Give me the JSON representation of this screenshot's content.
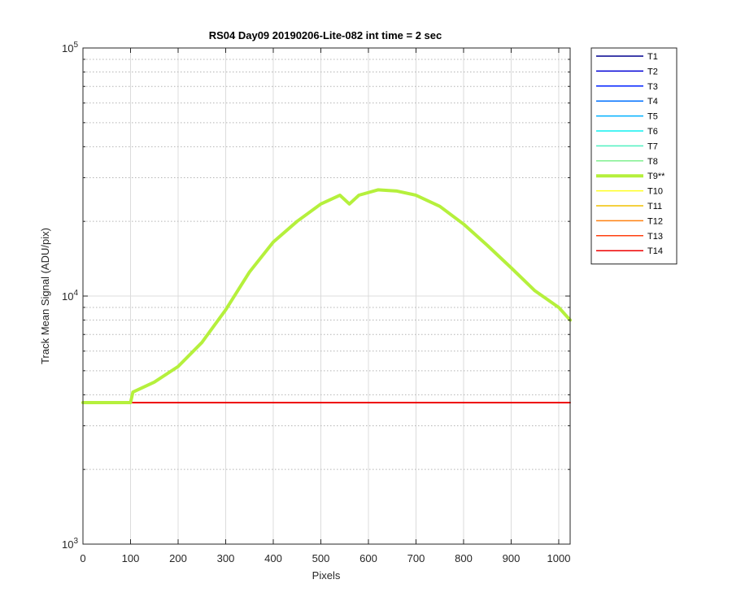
{
  "chart_data": {
    "type": "line",
    "title": "RS04 Day09 20190206-Lite-082 int time = 2 sec",
    "xlabel": "Pixels",
    "ylabel": "Track Mean Signal (ADU/pix)",
    "xlim": [
      0,
      1024
    ],
    "ylim": [
      1000,
      100000
    ],
    "yscale": "log",
    "grid": true,
    "legend_position": "outside-right",
    "x_ticks": [
      0,
      100,
      200,
      300,
      400,
      500,
      600,
      700,
      800,
      900,
      1000
    ],
    "y_ticks": [
      {
        "value": 1000,
        "base": "10",
        "exp": "3"
      },
      {
        "value": 10000,
        "base": "10",
        "exp": "4"
      },
      {
        "value": 100000,
        "base": "10",
        "exp": "5"
      }
    ],
    "baseline_value": 3720,
    "series": [
      {
        "name": "T1",
        "color": "#00008F",
        "width": 1.3,
        "values_ref": "baseline"
      },
      {
        "name": "T2",
        "color": "#0000D6",
        "width": 1.3,
        "values_ref": "baseline"
      },
      {
        "name": "T3",
        "color": "#0020FF",
        "width": 1.3,
        "values_ref": "baseline"
      },
      {
        "name": "T4",
        "color": "#0070FF",
        "width": 1.3,
        "values_ref": "baseline"
      },
      {
        "name": "T5",
        "color": "#00B0FF",
        "width": 1.3,
        "values_ref": "baseline"
      },
      {
        "name": "T6",
        "color": "#10F0F0",
        "width": 1.3,
        "values_ref": "baseline"
      },
      {
        "name": "T7",
        "color": "#50F0C0",
        "width": 1.3,
        "values_ref": "baseline"
      },
      {
        "name": "T8",
        "color": "#80F090",
        "width": 1.3,
        "values_ref": "baseline"
      },
      {
        "name": "T9**",
        "color": "#B5F03C",
        "width": 4,
        "values_ref": "t9",
        "points": [
          [
            0,
            3720
          ],
          [
            100,
            3720
          ],
          [
            105,
            4100
          ],
          [
            150,
            4500
          ],
          [
            200,
            5200
          ],
          [
            250,
            6500
          ],
          [
            300,
            8800
          ],
          [
            350,
            12500
          ],
          [
            400,
            16500
          ],
          [
            450,
            20000
          ],
          [
            500,
            23500
          ],
          [
            540,
            25500
          ],
          [
            560,
            23500
          ],
          [
            580,
            25500
          ],
          [
            620,
            26800
          ],
          [
            660,
            26500
          ],
          [
            700,
            25500
          ],
          [
            750,
            23000
          ],
          [
            800,
            19500
          ],
          [
            850,
            16000
          ],
          [
            900,
            13000
          ],
          [
            950,
            10500
          ],
          [
            1000,
            9000
          ],
          [
            1024,
            8000
          ]
        ]
      },
      {
        "name": "T10",
        "color": "#FFFF20",
        "width": 1.3,
        "values_ref": "baseline"
      },
      {
        "name": "T11",
        "color": "#F0C000",
        "width": 1.3,
        "values_ref": "baseline"
      },
      {
        "name": "T12",
        "color": "#FF8010",
        "width": 1.3,
        "values_ref": "baseline"
      },
      {
        "name": "T13",
        "color": "#FF4010",
        "width": 1.3,
        "values_ref": "baseline"
      },
      {
        "name": "T14",
        "color": "#EE0000",
        "width": 2,
        "values_ref": "baseline"
      }
    ]
  }
}
